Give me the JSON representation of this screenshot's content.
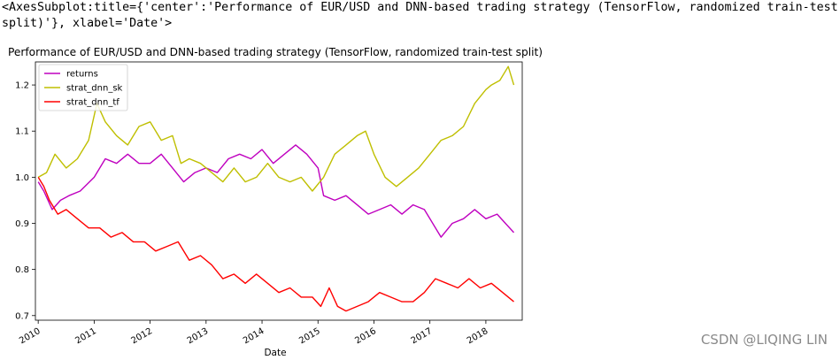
{
  "output_repr": "<AxesSubplot:title={'center':'Performance of EUR/USD and DNN-based trading strategy (TensorFlow, randomized train-test split)'}, xlabel='Date'>",
  "watermark": "CSDN @LIQING LIN",
  "chart_data": {
    "type": "line",
    "title": "Performance of EUR/USD and DNN-based trading strategy (TensorFlow, randomized train-test split)",
    "xlabel": "Date",
    "ylabel": "",
    "xlim": [
      2009.95,
      2018.65
    ],
    "ylim": [
      0.69,
      1.25
    ],
    "x_ticks": [
      2010,
      2011,
      2012,
      2013,
      2014,
      2015,
      2016,
      2017,
      2018
    ],
    "x_tick_labels": [
      "2010",
      "2011",
      "2012",
      "2013",
      "2014",
      "2015",
      "2016",
      "2017",
      "2018"
    ],
    "y_ticks": [
      0.7,
      0.8,
      0.9,
      1.0,
      1.1,
      1.2
    ],
    "y_tick_labels": [
      "0.7",
      "0.8",
      "0.9",
      "1.0",
      "1.1",
      "1.2"
    ],
    "grid": false,
    "legend_position": "top-left",
    "series": [
      {
        "name": "returns",
        "color": "#bf00bf",
        "x": [
          2010.0,
          2010.1,
          2010.25,
          2010.4,
          2010.55,
          2010.75,
          2011.0,
          2011.2,
          2011.4,
          2011.6,
          2011.8,
          2012.0,
          2012.2,
          2012.4,
          2012.6,
          2012.8,
          2013.0,
          2013.2,
          2013.4,
          2013.6,
          2013.8,
          2014.0,
          2014.2,
          2014.4,
          2014.6,
          2014.8,
          2015.0,
          2015.1,
          2015.3,
          2015.5,
          2015.7,
          2015.9,
          2016.1,
          2016.3,
          2016.5,
          2016.7,
          2016.9,
          2017.0,
          2017.2,
          2017.4,
          2017.6,
          2017.8,
          2018.0,
          2018.2,
          2018.35,
          2018.5
        ],
        "y": [
          0.99,
          0.97,
          0.93,
          0.95,
          0.96,
          0.97,
          1.0,
          1.04,
          1.03,
          1.05,
          1.03,
          1.03,
          1.05,
          1.02,
          0.99,
          1.01,
          1.02,
          1.01,
          1.04,
          1.05,
          1.04,
          1.06,
          1.03,
          1.05,
          1.07,
          1.05,
          1.02,
          0.96,
          0.95,
          0.96,
          0.94,
          0.92,
          0.93,
          0.94,
          0.92,
          0.94,
          0.93,
          0.91,
          0.87,
          0.9,
          0.91,
          0.93,
          0.91,
          0.92,
          0.9,
          0.88
        ]
      },
      {
        "name": "strat_dnn_sk",
        "color": "#bfbf00",
        "x": [
          2010.0,
          2010.15,
          2010.3,
          2010.5,
          2010.7,
          2010.9,
          2011.05,
          2011.2,
          2011.4,
          2011.6,
          2011.8,
          2012.0,
          2012.2,
          2012.4,
          2012.55,
          2012.7,
          2012.9,
          2013.1,
          2013.3,
          2013.5,
          2013.7,
          2013.9,
          2014.1,
          2014.3,
          2014.5,
          2014.7,
          2014.9,
          2015.1,
          2015.3,
          2015.5,
          2015.7,
          2015.85,
          2016.0,
          2016.2,
          2016.4,
          2016.6,
          2016.8,
          2017.0,
          2017.2,
          2017.4,
          2017.6,
          2017.8,
          2018.0,
          2018.1,
          2018.25,
          2018.4,
          2018.5
        ],
        "y": [
          1.0,
          1.01,
          1.05,
          1.02,
          1.04,
          1.08,
          1.16,
          1.12,
          1.09,
          1.07,
          1.11,
          1.12,
          1.08,
          1.09,
          1.03,
          1.04,
          1.03,
          1.01,
          0.99,
          1.02,
          0.99,
          1.0,
          1.03,
          1.0,
          0.99,
          1.0,
          0.97,
          1.0,
          1.05,
          1.07,
          1.09,
          1.1,
          1.05,
          1.0,
          0.98,
          1.0,
          1.02,
          1.05,
          1.08,
          1.09,
          1.11,
          1.16,
          1.19,
          1.2,
          1.21,
          1.24,
          1.2
        ]
      },
      {
        "name": "strat_dnn_tf",
        "color": "#ff0000",
        "x": [
          2010.0,
          2010.1,
          2010.2,
          2010.35,
          2010.5,
          2010.7,
          2010.9,
          2011.1,
          2011.3,
          2011.5,
          2011.7,
          2011.9,
          2012.1,
          2012.3,
          2012.5,
          2012.7,
          2012.9,
          2013.1,
          2013.3,
          2013.5,
          2013.7,
          2013.9,
          2014.1,
          2014.3,
          2014.5,
          2014.7,
          2014.9,
          2015.05,
          2015.2,
          2015.35,
          2015.5,
          2015.7,
          2015.9,
          2016.1,
          2016.3,
          2016.5,
          2016.7,
          2016.9,
          2017.1,
          2017.3,
          2017.5,
          2017.7,
          2017.9,
          2018.1,
          2018.3,
          2018.5
        ],
        "y": [
          1.0,
          0.98,
          0.95,
          0.92,
          0.93,
          0.91,
          0.89,
          0.89,
          0.87,
          0.88,
          0.86,
          0.86,
          0.84,
          0.85,
          0.86,
          0.82,
          0.83,
          0.81,
          0.78,
          0.79,
          0.77,
          0.79,
          0.77,
          0.75,
          0.76,
          0.74,
          0.74,
          0.72,
          0.76,
          0.72,
          0.71,
          0.72,
          0.73,
          0.75,
          0.74,
          0.73,
          0.73,
          0.75,
          0.78,
          0.77,
          0.76,
          0.78,
          0.76,
          0.77,
          0.75,
          0.73
        ]
      }
    ]
  }
}
